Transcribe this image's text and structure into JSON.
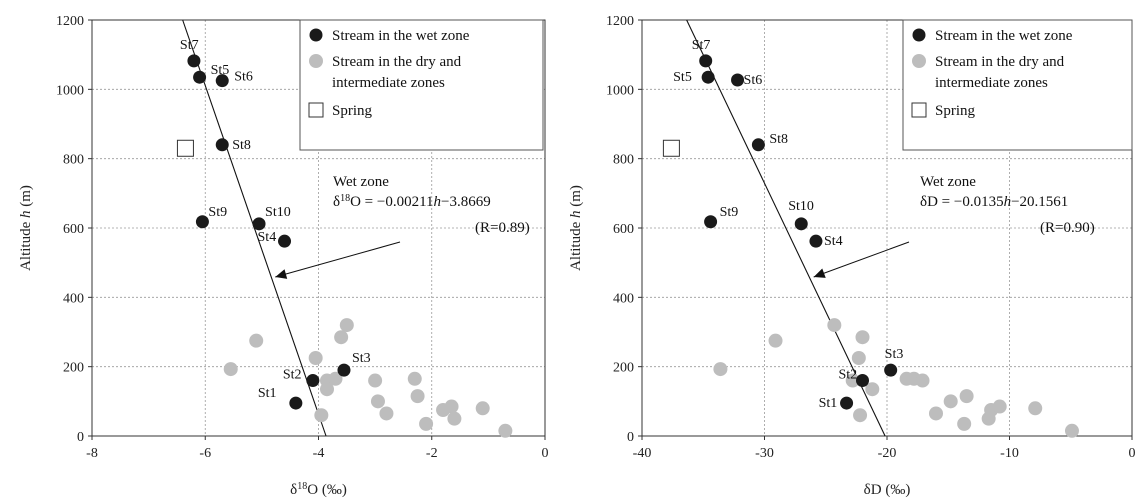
{
  "chart_data": [
    {
      "type": "scatter",
      "xlabel_main": "δ",
      "xlabel_sup": "18",
      "xlabel_rest": "O (‰)",
      "ylabel_pre": "Altitude ",
      "ylabel_var": "h",
      "ylabel_post": " (m)",
      "xlim": [
        -8,
        0
      ],
      "ylim": [
        0,
        1200
      ],
      "xticks": [
        -8,
        -6,
        -4,
        -2,
        0
      ],
      "yticks": [
        0,
        200,
        400,
        600,
        800,
        1000,
        1200
      ],
      "grid": true,
      "legend_position": "top-right",
      "legend": {
        "wet": "Stream in the wet zone",
        "dry_line1": "Stream in the dry and",
        "dry_line2": "intermediate zones",
        "spring": "Spring"
      },
      "series": [
        {
          "key": "wet",
          "color": "#1a1a1a",
          "points": [
            {
              "label": "St1",
              "x": -4.4,
              "y": 95
            },
            {
              "label": "St2",
              "x": -4.1,
              "y": 160
            },
            {
              "label": "St3",
              "x": -3.55,
              "y": 190
            },
            {
              "label": "St4",
              "x": -4.6,
              "y": 562
            },
            {
              "label": "St5",
              "x": -6.1,
              "y": 1035
            },
            {
              "label": "St6",
              "x": -5.7,
              "y": 1025
            },
            {
              "label": "St7",
              "x": -6.2,
              "y": 1082
            },
            {
              "label": "St8",
              "x": -5.7,
              "y": 840
            },
            {
              "label": "St9",
              "x": -6.05,
              "y": 618
            },
            {
              "label": "St10",
              "x": -5.05,
              "y": 612
            }
          ]
        },
        {
          "key": "dry",
          "color": "#bdbdbd",
          "points": [
            {
              "x": -5.1,
              "y": 275
            },
            {
              "x": -5.55,
              "y": 193
            },
            {
              "x": -4.05,
              "y": 225
            },
            {
              "x": -3.85,
              "y": 160
            },
            {
              "x": -3.7,
              "y": 165
            },
            {
              "x": -3.85,
              "y": 135
            },
            {
              "x": -3.95,
              "y": 60
            },
            {
              "x": -3.6,
              "y": 285
            },
            {
              "x": -3.5,
              "y": 320
            },
            {
              "x": -3.0,
              "y": 160
            },
            {
              "x": -2.95,
              "y": 100
            },
            {
              "x": -2.8,
              "y": 65
            },
            {
              "x": -2.3,
              "y": 165
            },
            {
              "x": -2.25,
              "y": 115
            },
            {
              "x": -2.1,
              "y": 35
            },
            {
              "x": -1.8,
              "y": 75
            },
            {
              "x": -1.65,
              "y": 85
            },
            {
              "x": -1.6,
              "y": 50
            },
            {
              "x": -1.1,
              "y": 80
            },
            {
              "x": -0.7,
              "y": 15
            }
          ]
        },
        {
          "key": "spring",
          "points": [
            {
              "x": -6.35,
              "y": 830
            }
          ]
        }
      ],
      "regression": {
        "slope": -0.00211,
        "intercept": -3.8669,
        "label": "Wet zone",
        "eq_pre": "δ",
        "eq_sup": "18",
        "eq_mid": "O = −0.00211",
        "eq_var": "h",
        "eq_post": "−3.8669",
        "r_text": "(R=0.89)"
      }
    },
    {
      "type": "scatter",
      "xlabel_main": "δD (‰)",
      "xlabel_sup": "",
      "xlabel_rest": "",
      "ylabel_pre": "Altitude ",
      "ylabel_var": "h",
      "ylabel_post": " (m)",
      "xlim": [
        -40,
        0
      ],
      "ylim": [
        0,
        1200
      ],
      "xticks": [
        -40,
        -30,
        -20,
        -10,
        0
      ],
      "yticks": [
        0,
        200,
        400,
        600,
        800,
        1000,
        1200
      ],
      "grid": true,
      "legend_position": "top-right",
      "legend": {
        "wet": "Stream in the wet zone",
        "dry_line1": "Stream in the dry and",
        "dry_line2": "intermediate zones",
        "spring": "Spring"
      },
      "series": [
        {
          "key": "wet",
          "color": "#1a1a1a",
          "points": [
            {
              "label": "St1",
              "x": -23.3,
              "y": 95
            },
            {
              "label": "St2",
              "x": -22.0,
              "y": 160
            },
            {
              "label": "St3",
              "x": -19.7,
              "y": 190
            },
            {
              "label": "St4",
              "x": -25.8,
              "y": 562
            },
            {
              "label": "St5",
              "x": -34.6,
              "y": 1035
            },
            {
              "label": "St6",
              "x": -32.2,
              "y": 1027
            },
            {
              "label": "St7",
              "x": -34.8,
              "y": 1082
            },
            {
              "label": "St8",
              "x": -30.5,
              "y": 840
            },
            {
              "label": "St9",
              "x": -34.4,
              "y": 618
            },
            {
              "label": "St10",
              "x": -27.0,
              "y": 612
            }
          ]
        },
        {
          "key": "dry",
          "color": "#bdbdbd",
          "points": [
            {
              "x": -33.6,
              "y": 193
            },
            {
              "x": -29.1,
              "y": 275
            },
            {
              "x": -24.3,
              "y": 320
            },
            {
              "x": -22.0,
              "y": 285
            },
            {
              "x": -22.3,
              "y": 225
            },
            {
              "x": -22.8,
              "y": 160
            },
            {
              "x": -22.2,
              "y": 60
            },
            {
              "x": -21.2,
              "y": 135
            },
            {
              "x": -18.4,
              "y": 165
            },
            {
              "x": -17.8,
              "y": 165
            },
            {
              "x": -17.1,
              "y": 160
            },
            {
              "x": -16.0,
              "y": 65
            },
            {
              "x": -14.8,
              "y": 100
            },
            {
              "x": -13.5,
              "y": 115
            },
            {
              "x": -13.7,
              "y": 35
            },
            {
              "x": -11.7,
              "y": 50
            },
            {
              "x": -11.5,
              "y": 75
            },
            {
              "x": -10.8,
              "y": 85
            },
            {
              "x": -7.9,
              "y": 80
            },
            {
              "x": -4.9,
              "y": 15
            }
          ]
        },
        {
          "key": "spring",
          "points": [
            {
              "x": -37.6,
              "y": 830
            }
          ]
        }
      ],
      "regression": {
        "slope": -0.0135,
        "intercept": -20.1561,
        "label": "Wet zone",
        "eq_pre": "δD = −0.0135",
        "eq_sup": "",
        "eq_mid": "",
        "eq_var": "h",
        "eq_post": "−20.1561",
        "r_text": "(R=0.90)"
      }
    }
  ]
}
